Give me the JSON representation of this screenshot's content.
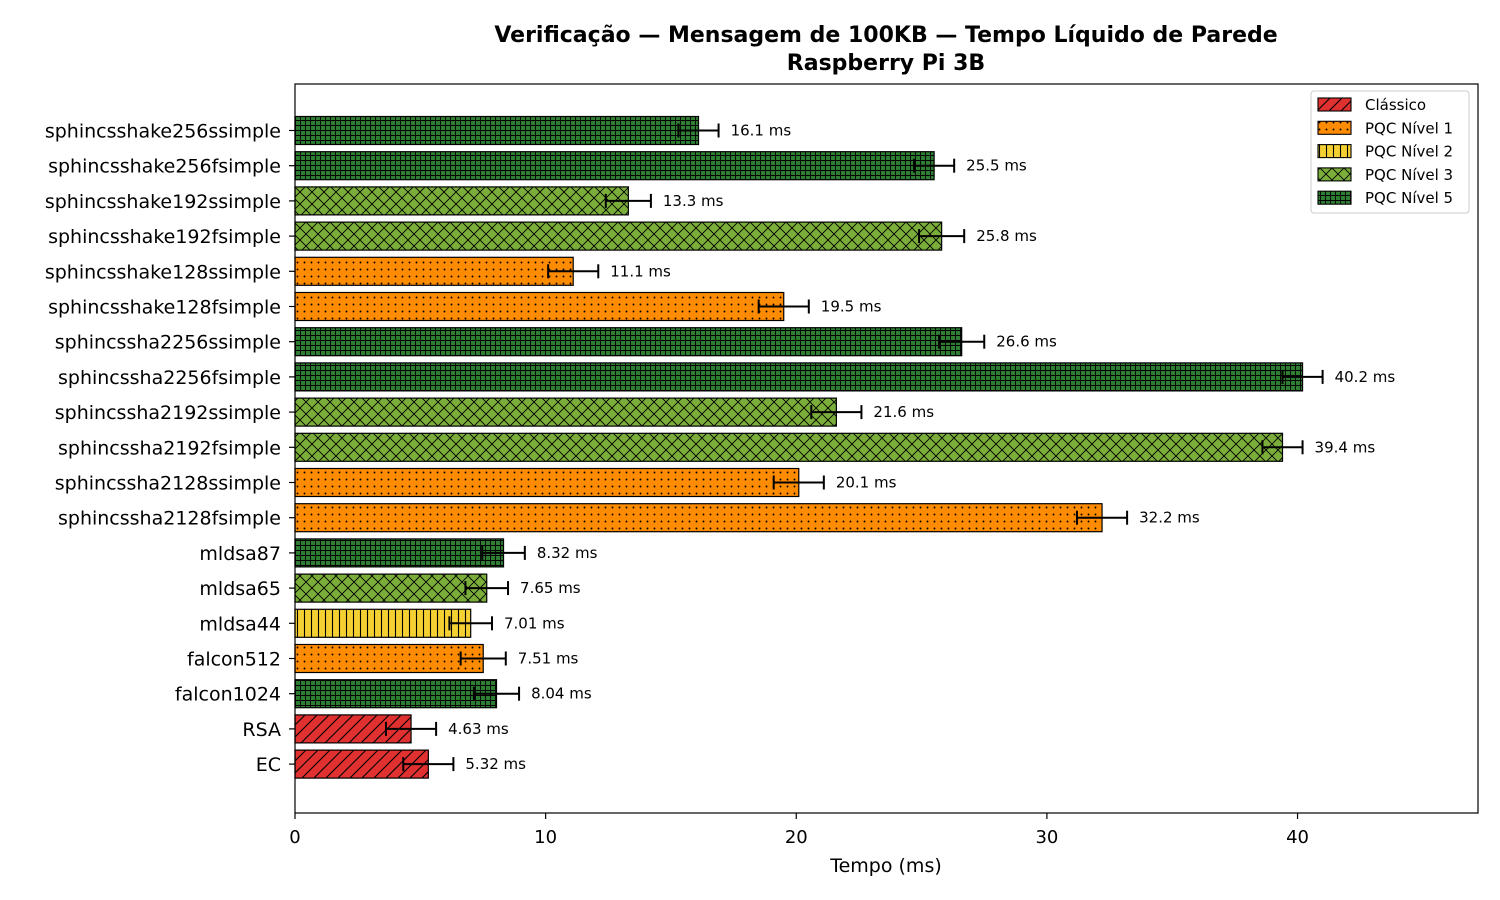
{
  "chart_data": {
    "type": "bar",
    "orientation": "horizontal",
    "title": "Verificação — Mensagem de 100KB — Tempo Líquido de Parede",
    "subtitle": "Raspberry Pi 3B",
    "xlabel": "Tempo (ms)",
    "ylabel": "",
    "xlim": [
      0,
      47.2
    ],
    "xticks": [
      0,
      10,
      20,
      30,
      40
    ],
    "grid": false,
    "legend_position": "top-right",
    "legend": [
      {
        "key": "classico",
        "label": "Clássico",
        "color": "#e03030",
        "pattern": "diagonal-hatch"
      },
      {
        "key": "n1",
        "label": "PQC Nível 1",
        "color": "#ff8c00",
        "pattern": "dots"
      },
      {
        "key": "n2",
        "label": "PQC Nível 2",
        "color": "#f5d033",
        "pattern": "vertical-lines"
      },
      {
        "key": "n3",
        "label": "PQC Nível 3",
        "color": "#7aad3a",
        "pattern": "crosshatch-x"
      },
      {
        "key": "n5",
        "label": "PQC Nível 5",
        "color": "#2e7d32",
        "pattern": "grid"
      }
    ],
    "bars": [
      {
        "name": "sphincsshake256ssimple",
        "value": 16.1,
        "err": 0.8,
        "label": "16.1 ms",
        "group": "n5"
      },
      {
        "name": "sphincsshake256fsimple",
        "value": 25.5,
        "err": 0.8,
        "label": "25.5 ms",
        "group": "n5"
      },
      {
        "name": "sphincsshake192ssimple",
        "value": 13.3,
        "err": 0.9,
        "label": "13.3 ms",
        "group": "n3"
      },
      {
        "name": "sphincsshake192fsimple",
        "value": 25.8,
        "err": 0.9,
        "label": "25.8 ms",
        "group": "n3"
      },
      {
        "name": "sphincsshake128ssimple",
        "value": 11.1,
        "err": 1.0,
        "label": "11.1 ms",
        "group": "n1"
      },
      {
        "name": "sphincsshake128fsimple",
        "value": 19.5,
        "err": 1.0,
        "label": "19.5 ms",
        "group": "n1"
      },
      {
        "name": "sphincssha2256ssimple",
        "value": 26.6,
        "err": 0.9,
        "label": "26.6 ms",
        "group": "n5"
      },
      {
        "name": "sphincssha2256fsimple",
        "value": 40.2,
        "err": 0.8,
        "label": "40.2 ms",
        "group": "n5"
      },
      {
        "name": "sphincssha2192ssimple",
        "value": 21.6,
        "err": 1.0,
        "label": "21.6 ms",
        "group": "n3"
      },
      {
        "name": "sphincssha2192fsimple",
        "value": 39.4,
        "err": 0.8,
        "label": "39.4 ms",
        "group": "n3"
      },
      {
        "name": "sphincssha2128ssimple",
        "value": 20.1,
        "err": 1.0,
        "label": "20.1 ms",
        "group": "n1"
      },
      {
        "name": "sphincssha2128fsimple",
        "value": 32.2,
        "err": 1.0,
        "label": "32.2 ms",
        "group": "n1"
      },
      {
        "name": "mldsa87",
        "value": 8.32,
        "err": 0.85,
        "label": "8.32 ms",
        "group": "n5"
      },
      {
        "name": "mldsa65",
        "value": 7.65,
        "err": 0.85,
        "label": "7.65 ms",
        "group": "n3"
      },
      {
        "name": "mldsa44",
        "value": 7.01,
        "err": 0.85,
        "label": "7.01 ms",
        "group": "n2"
      },
      {
        "name": "falcon512",
        "value": 7.51,
        "err": 0.9,
        "label": "7.51 ms",
        "group": "n1"
      },
      {
        "name": "falcon1024",
        "value": 8.04,
        "err": 0.9,
        "label": "8.04 ms",
        "group": "n5"
      },
      {
        "name": "RSA",
        "value": 4.63,
        "err": 1.0,
        "label": "4.63 ms",
        "group": "classico"
      },
      {
        "name": "EC",
        "value": 5.32,
        "err": 1.0,
        "label": "5.32 ms",
        "group": "classico"
      }
    ]
  }
}
